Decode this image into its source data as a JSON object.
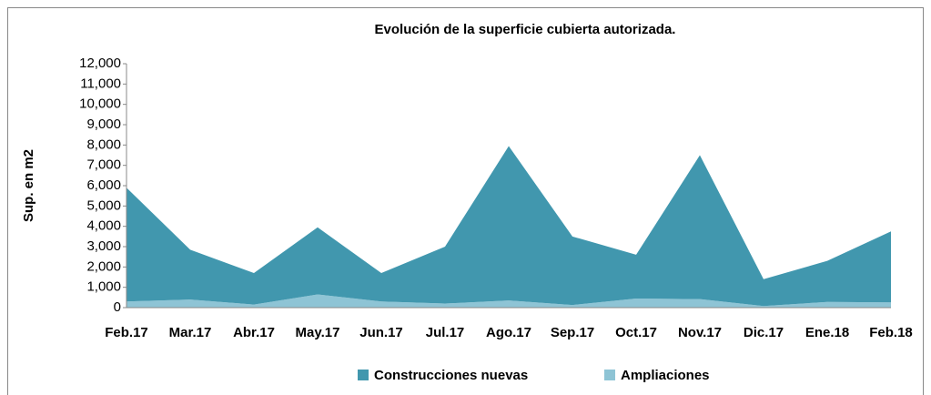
{
  "chart_data": {
    "type": "stacked_area",
    "title": "Evolución de la superficie cubierta autorizada.",
    "y_label": "Sup. en m2",
    "categories": [
      "Feb.17",
      "Mar.17",
      "Abr.17",
      "May.17",
      "Jun.17",
      "Jul.17",
      "Ago.17",
      "Sep.17",
      "Oct.17",
      "Nov.17",
      "Dic.17",
      "Ene.18",
      "Feb.18"
    ],
    "series": [
      {
        "name": "Construcciones nuevas",
        "color": "#4197ae",
        "values": [
          5600,
          2450,
          1550,
          3300,
          1400,
          2800,
          7600,
          3370,
          2150,
          7080,
          1320,
          2020,
          3490
        ]
      },
      {
        "name": "Ampliaciones",
        "color": "#8ec4d5",
        "values": [
          300,
          400,
          150,
          650,
          300,
          200,
          350,
          130,
          450,
          420,
          80,
          280,
          260
        ]
      }
    ],
    "ylim": [
      0,
      12000
    ],
    "yticks": [
      0,
      {
        "value": 1000,
        "label": "1,000"
      },
      {
        "value": 2000,
        "label": "2,000"
      },
      {
        "value": 3000,
        "label": "3,000"
      },
      {
        "value": 4000,
        "label": "4,000"
      },
      {
        "value": 5000,
        "label": "5,000"
      },
      {
        "value": 6000,
        "label": "6,000"
      },
      {
        "value": 7000,
        "label": "7,000"
      },
      {
        "value": 8000,
        "label": "8,000"
      },
      {
        "value": 9000,
        "label": "9,000"
      },
      {
        "value": 10000,
        "label": "10,000"
      },
      {
        "value": 11000,
        "label": "11,000"
      },
      {
        "value": 12000,
        "label": "12,000"
      }
    ],
    "legend": "bottom"
  }
}
